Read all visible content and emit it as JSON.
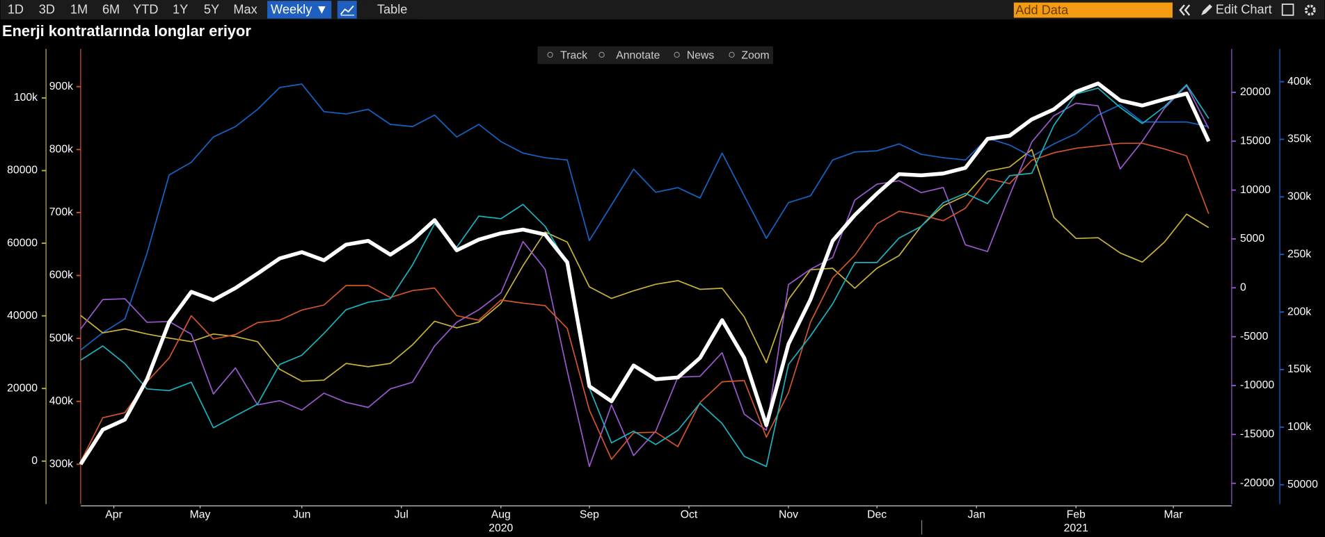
{
  "toolbar": {
    "periods": [
      "1D",
      "3D",
      "1M",
      "6M",
      "YTD",
      "1Y",
      "5Y",
      "Max"
    ],
    "frequency": "Weekly ▼",
    "table": "Table",
    "add_data": "Add Data",
    "edit_chart": "Edit Chart"
  },
  "chart_tools": [
    "Track",
    "Annotate",
    "News",
    "Zoom"
  ],
  "chart_data": {
    "type": "line",
    "title": "Enerji kontratlarında longlar eriyor",
    "xlim": [
      0,
      52
    ],
    "xticks": [
      {
        "value": 1.5,
        "label": "Apr"
      },
      {
        "value": 5.4,
        "label": "May"
      },
      {
        "value": 10.0,
        "label": "Jun"
      },
      {
        "value": 14.5,
        "label": "Jul"
      },
      {
        "value": 19.0,
        "label": "Aug"
      },
      {
        "value": 23.0,
        "label": "Sep"
      },
      {
        "value": 27.5,
        "label": "Oct"
      },
      {
        "value": 32.0,
        "label": "Nov"
      },
      {
        "value": 36.0,
        "label": "Dec"
      },
      {
        "value": 40.5,
        "label": "Jan"
      },
      {
        "value": 45.0,
        "label": "Feb"
      },
      {
        "value": 49.4,
        "label": "Mar"
      }
    ],
    "year_labels": [
      {
        "value": 19.0,
        "label": "2020"
      },
      {
        "value": 45.0,
        "label": "2021"
      }
    ],
    "ylim": [
      234000,
      964000
    ],
    "yticks": [
      {
        "value": 300000,
        "label": "300k"
      },
      {
        "value": 400000,
        "label": "400k"
      },
      {
        "value": 500000,
        "label": "500k"
      },
      {
        "value": 600000,
        "label": "600k"
      },
      {
        "value": 700000,
        "label": "700k"
      },
      {
        "value": 800000,
        "label": "800k"
      },
      {
        "value": 900000,
        "label": "900k"
      }
    ],
    "y2lim": [
      -12300,
      114200
    ],
    "y2ticks": [
      0,
      20000,
      40000,
      60000,
      80000,
      {
        "value": 100000,
        "label": "100k"
      }
    ],
    "y3lim": [
      -22300,
      24700
    ],
    "y3ticks": [
      -20000,
      -15000,
      -10000,
      -5000,
      0,
      5000,
      10000,
      15000,
      20000
    ],
    "y4lim": [
      31700,
      430700
    ],
    "y4ticks": [
      50000,
      {
        "value": 100000,
        "label": "100k"
      },
      {
        "value": 150000,
        "label": "150k"
      },
      {
        "value": 200000,
        "label": "200k"
      },
      {
        "value": 250000,
        "label": "250k"
      },
      {
        "value": 300000,
        "label": "300k"
      },
      {
        "value": 350000,
        "label": "350k"
      },
      {
        "value": 400000,
        "label": "400k"
      }
    ],
    "series": [
      {
        "color": "#1464c8",
        "axis": "y4",
        "values": [
          167000,
          182000,
          194000,
          251000,
          319000,
          330000,
          352000,
          361000,
          376000,
          395000,
          398000,
          374000,
          372000,
          376000,
          363000,
          361000,
          371000,
          352000,
          363000,
          348000,
          338000,
          334000,
          332000,
          262000,
          293000,
          324000,
          304000,
          308000,
          299000,
          338000,
          301000,
          264000,
          295000,
          301000,
          332000,
          339000,
          340000,
          346000,
          337000,
          334000,
          332000,
          351000,
          345000,
          335000,
          346000,
          355000,
          371000,
          380000,
          365000,
          365000,
          365000,
          361000
        ]
      },
      {
        "color": "#c8b43c",
        "axis": "y2",
        "values": [
          40100,
          35300,
          36400,
          35000,
          33900,
          32900,
          35000,
          34300,
          32900,
          25300,
          22000,
          22300,
          26900,
          26000,
          26900,
          32000,
          38500,
          36700,
          38300,
          43400,
          53800,
          63100,
          60300,
          48000,
          44800,
          46900,
          48700,
          49700,
          47300,
          47600,
          39700,
          27100,
          44500,
          52700,
          53100,
          47600,
          53100,
          56600,
          64700,
          70300,
          73100,
          79800,
          81000,
          85800,
          67100,
          61300,
          61500,
          57300,
          54800,
          60300,
          68000,
          64300
        ]
      },
      {
        "color": "#9b59d0",
        "axis": "y3",
        "values": [
          -4220,
          -1210,
          -1120,
          -3530,
          -3450,
          -4740,
          -10860,
          -8190,
          -11980,
          -11550,
          -12500,
          -10780,
          -11720,
          -12240,
          -10340,
          -9660,
          -5950,
          -3530,
          -2240,
          -520,
          4740,
          1900,
          -8530,
          -18280,
          -11980,
          -17160,
          -14660,
          -9140,
          -9050,
          -6640,
          -12930,
          -14570,
          340,
          1900,
          3100,
          8970,
          10600,
          10950,
          9740,
          10260,
          4400,
          3710,
          9480,
          14910,
          17590,
          18880,
          18620,
          12160,
          15000,
          18360,
          20690,
          16290
        ]
      },
      {
        "color": "#d2562a",
        "axis": "y",
        "values": [
          304000,
          374000,
          382000,
          431000,
          469000,
          536000,
          499000,
          506000,
          525000,
          529000,
          545000,
          553000,
          584000,
          584000,
          565000,
          576000,
          580000,
          536000,
          529000,
          561000,
          556000,
          552000,
          516000,
          386000,
          308000,
          350000,
          351000,
          328000,
          398000,
          431000,
          433000,
          343000,
          414000,
          526000,
          596000,
          632000,
          682000,
          702000,
          696000,
          687000,
          707000,
          754000,
          746000,
          783000,
          795000,
          802000,
          806000,
          810000,
          810000,
          801000,
          790000,
          698000
        ]
      },
      {
        "color": "#1ab3c0",
        "axis": "y3",
        "values": [
          -7400,
          -5950,
          -7760,
          -10340,
          -10520,
          -9660,
          -14310,
          -13100,
          -11900,
          -7840,
          -6900,
          -4660,
          -2240,
          -1470,
          -1120,
          2330,
          6550,
          4140,
          7330,
          7070,
          8530,
          6290,
          2500,
          -10260,
          -15860,
          -14660,
          -16030,
          -14570,
          -11810,
          -13880,
          -17240,
          -18280,
          -7840,
          -4910,
          -1640,
          2590,
          2590,
          5090,
          6290,
          8710,
          9660,
          8620,
          11470,
          11720,
          16640,
          19830,
          20430,
          18450,
          16810,
          18530,
          20780,
          17330
        ]
      },
      {
        "color": "#ffffff",
        "axis": "y",
        "values": [
          300000,
          355000,
          371000,
          435000,
          526000,
          574000,
          561000,
          580000,
          603000,
          627000,
          637000,
          624000,
          649000,
          655000,
          633000,
          656000,
          688000,
          640000,
          657000,
          667000,
          673000,
          665000,
          621000,
          424000,
          400000,
          457000,
          435000,
          438000,
          469000,
          529000,
          469000,
          362000,
          491000,
          562000,
          655000,
          696000,
          730000,
          761000,
          759000,
          762000,
          771000,
          817000,
          822000,
          848000,
          864000,
          892000,
          905000,
          878000,
          870000,
          880000,
          889000,
          813000
        ]
      }
    ]
  }
}
